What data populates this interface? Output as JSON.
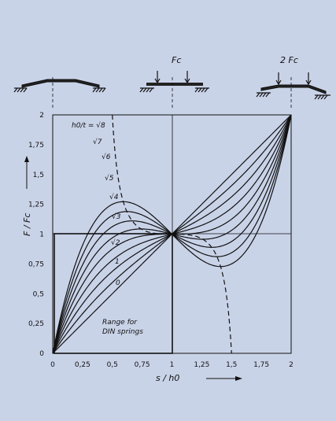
{
  "chart_data": {
    "type": "line",
    "xlabel": "s / h0",
    "ylabel": "F / Fc",
    "xlim": [
      0,
      2
    ],
    "ylim": [
      0,
      2
    ],
    "x_ticks": [
      "0",
      "0,25",
      "0,5",
      "0,75",
      "1",
      "1,25",
      "1,5",
      "1,75",
      "2"
    ],
    "y_ticks": [
      "0",
      "0,25",
      "0,5",
      "0,75",
      "1",
      "1,25",
      "1,5",
      "1,75",
      "2"
    ],
    "x_tick_values": [
      0,
      0.25,
      0.5,
      0.75,
      1,
      1.25,
      1.5,
      1.75,
      2
    ],
    "y_tick_values": [
      0,
      0.25,
      0.5,
      0.75,
      1,
      1.25,
      1.5,
      1.75,
      2
    ],
    "series": [
      {
        "name": "h0/t = √8",
        "k": 2.828,
        "dashed": false
      },
      {
        "name": "√7",
        "k": 2.646,
        "dashed": false
      },
      {
        "name": "√6",
        "k": 2.449,
        "dashed": false
      },
      {
        "name": "√5",
        "k": 2.236,
        "dashed": false
      },
      {
        "name": "√4",
        "k": 2.0,
        "dashed": false
      },
      {
        "name": "√3",
        "k": 1.732,
        "dashed": false
      },
      {
        "name": "√2",
        "k": 1.414,
        "dashed": false
      },
      {
        "name": "1",
        "k": 1.0,
        "dashed": false
      },
      {
        "name": "0",
        "k": 0.0,
        "dashed": false
      }
    ],
    "annotations": {
      "range_line1": "Range for",
      "range_line2": "DIN springs",
      "top_label_1": "Fc",
      "top_label_2": "2 Fc"
    },
    "label_h0t": "h0/t = √8",
    "label_sqrt7": "√7",
    "label_sqrt6": "√6",
    "label_sqrt5": "√5",
    "label_sqrt4": "√4",
    "label_sqrt3": "√3",
    "label_sqrt2": "√2",
    "label_1": "1",
    "label_0": "0",
    "grid": false,
    "dashed_envelope": true
  }
}
